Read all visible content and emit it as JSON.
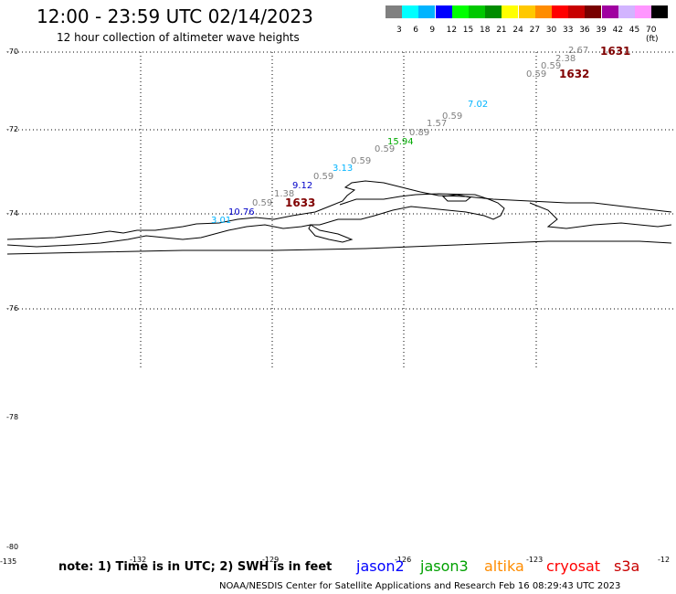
{
  "title": "12:00 - 23:59 UTC 02/14/2023",
  "subtitle": "12 hour collection of altimeter wave heights",
  "legend": {
    "colors": [
      "#808080",
      "#00ffff",
      "#00b4ff",
      "#0000ff",
      "#00ff00",
      "#00c800",
      "#008c00",
      "#ffff00",
      "#ffc800",
      "#ff8c00",
      "#ff0000",
      "#c80000",
      "#780000",
      "#a000a0",
      "#d2b4ff",
      "#ff96ff",
      "#000000"
    ],
    "labels": [
      "3",
      "6",
      "9",
      "12",
      "15",
      "18",
      "21",
      "24",
      "27",
      "30",
      "33",
      "36",
      "39",
      "42",
      "45",
      "70 (ft)"
    ]
  },
  "lat_labels": [
    "-70",
    "-72",
    "-74",
    "-76",
    "-78",
    "-80"
  ],
  "lon_labels": [
    "-135",
    "-132",
    "-129",
    "-126",
    "-123",
    "-12"
  ],
  "wave_obs": [
    {
      "text": "2.67",
      "color": "#808080"
    },
    {
      "text": "2.38",
      "color": "#808080"
    },
    {
      "text": "0.59",
      "color": "#808080"
    },
    {
      "text": "0.59",
      "color": "#808080"
    },
    {
      "text": "7.02",
      "color": "#00b4ff"
    },
    {
      "text": "0.59",
      "color": "#808080"
    },
    {
      "text": "1.57",
      "color": "#808080"
    },
    {
      "text": "0.89",
      "color": "#808080"
    },
    {
      "text": "15.94",
      "color": "#00aa00"
    },
    {
      "text": "0.59",
      "color": "#808080"
    },
    {
      "text": "0.59",
      "color": "#808080"
    },
    {
      "text": "3.13",
      "color": "#00b4ff"
    },
    {
      "text": "0.59",
      "color": "#808080"
    },
    {
      "text": "9.12",
      "color": "#0000c8"
    },
    {
      "text": "1.38",
      "color": "#808080"
    },
    {
      "text": "0.59",
      "color": "#808080"
    },
    {
      "text": "10.76",
      "color": "#0000c8"
    },
    {
      "text": "3.01",
      "color": "#00b4ff"
    }
  ],
  "cycle_ids": [
    "1631",
    "1632",
    "1633"
  ],
  "note": "note: 1) Time is in UTC; 2) SWH is in feet",
  "satellites": [
    {
      "name": "jason2",
      "color": "#0000ff"
    },
    {
      "name": "jason3",
      "color": "#00a000"
    },
    {
      "name": "altika",
      "color": "#ff8c00"
    },
    {
      "name": "cryosat",
      "color": "#ff0000"
    },
    {
      "name": "s3a",
      "color": "#c80000"
    }
  ],
  "footer": "NOAA/NESDIS Center for Satellite Applications and Research    Feb 16 08:29:43 UTC 2023"
}
